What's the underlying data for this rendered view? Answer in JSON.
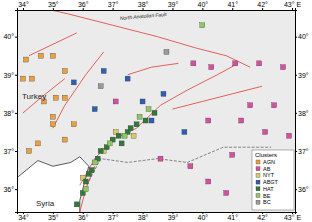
{
  "chart_data": {
    "type": "scatter",
    "legend_title": "Clusters",
    "legend": "bottom-right",
    "xlim": [
      33.8,
      43.1
    ],
    "ylim": [
      35.4,
      40.7
    ],
    "xticks": [
      {
        "value": 34,
        "label": "34°"
      },
      {
        "value": 35,
        "label": "35°"
      },
      {
        "value": 36,
        "label": "36°"
      },
      {
        "value": 37,
        "label": "37°"
      },
      {
        "value": 38,
        "label": "38°"
      },
      {
        "value": 39,
        "label": "39°"
      },
      {
        "value": 40,
        "label": "40°"
      },
      {
        "value": 41,
        "label": "41°"
      },
      {
        "value": 42,
        "label": "42°"
      },
      {
        "value": 43,
        "label": "43° E"
      }
    ],
    "yticks": [
      {
        "value": 36,
        "label": "36°"
      },
      {
        "value": 37,
        "label": "37°"
      },
      {
        "value": 38,
        "label": "38°"
      },
      {
        "value": 39,
        "label": "39°"
      },
      {
        "value": 40,
        "label": "40°"
      }
    ],
    "annotations": [
      "Turkey",
      "Syria",
      "North Anatolian Fault"
    ],
    "faults": [
      [
        [
          33.8,
          40.9
        ],
        [
          35.5,
          40.6
        ],
        [
          37.0,
          40.3
        ],
        [
          38.5,
          40.0
        ],
        [
          39.8,
          39.7
        ],
        [
          40.8,
          39.5
        ],
        [
          41.6,
          39.2
        ]
      ],
      [
        [
          35.9,
          36.1
        ],
        [
          36.4,
          36.8
        ],
        [
          37.0,
          37.3
        ],
        [
          37.8,
          37.6
        ],
        [
          38.6,
          38.2
        ],
        [
          39.5,
          38.6
        ],
        [
          40.5,
          39.0
        ],
        [
          41.2,
          39.3
        ]
      ],
      [
        [
          35.9,
          35.4
        ],
        [
          36.1,
          36.0
        ],
        [
          36.4,
          36.6
        ]
      ],
      [
        [
          34.0,
          38.0
        ],
        [
          34.6,
          38.4
        ],
        [
          35.4,
          38.9
        ]
      ],
      [
        [
          35.0,
          37.6
        ],
        [
          35.4,
          38.2
        ],
        [
          36.1,
          39.0
        ],
        [
          36.7,
          39.6
        ]
      ],
      [
        [
          37.5,
          39.0
        ],
        [
          38.3,
          39.2
        ],
        [
          39.2,
          39.3
        ]
      ],
      [
        [
          39.0,
          38.1
        ],
        [
          40.0,
          38.3
        ],
        [
          41.0,
          38.5
        ],
        [
          42.0,
          38.7
        ]
      ],
      [
        [
          34.2,
          39.5
        ],
        [
          35.0,
          39.8
        ],
        [
          35.8,
          40.1
        ]
      ]
    ],
    "coastline": [
      [
        33.8,
        36.3
      ],
      [
        34.5,
        36.75
      ],
      [
        35.0,
        36.6
      ],
      [
        35.6,
        36.7
      ],
      [
        35.9,
        36.85
      ],
      [
        36.2,
        36.6
      ],
      [
        36.0,
        36.0
      ],
      [
        35.9,
        35.7
      ],
      [
        35.9,
        35.4
      ]
    ],
    "border": [
      [
        36.0,
        35.9
      ],
      [
        36.6,
        36.8
      ],
      [
        37.5,
        36.7
      ],
      [
        38.5,
        36.8
      ],
      [
        39.5,
        36.7
      ],
      [
        40.7,
        37.1
      ],
      [
        41.5,
        37.1
      ],
      [
        42.3,
        37.1
      ]
    ],
    "series": [
      {
        "name": "AGN",
        "color": "#e8a040",
        "x": [
          34.1,
          34.0,
          34.3,
          34.6,
          35.0,
          35.4,
          35.4,
          35.1,
          34.7,
          35.0,
          34.5,
          34.2,
          35.4,
          35.7,
          35.0
        ],
        "values": [
          39.4,
          38.9,
          38.9,
          39.5,
          39.5,
          39.1,
          38.4,
          38.4,
          38.3,
          37.9,
          37.2,
          37.0,
          37.3,
          37.7,
          37.7
        ]
      },
      {
        "name": "AB",
        "color": "#d64fa0",
        "x": [
          37.1,
          39.7,
          40.3,
          41.1,
          41.9,
          42.7,
          41.6,
          42.4,
          40.2,
          41.3,
          42.1,
          42.9,
          41.0,
          38.6,
          39.6,
          40.2,
          40.8
        ],
        "values": [
          38.3,
          39.3,
          39.2,
          39.3,
          39.3,
          39.2,
          38.2,
          38.2,
          37.8,
          37.8,
          37.5,
          37.4,
          36.9,
          36.8,
          36.6,
          36.2,
          35.9
        ]
      },
      {
        "name": "NYT",
        "color": "#d8c86a",
        "x": [
          36.7,
          37.1,
          36.0,
          37.7
        ],
        "values": [
          37.0,
          37.5,
          36.3,
          37.4
        ]
      },
      {
        "name": "ABGT",
        "color": "#2f5fb0",
        "x": [
          37.5,
          36.7,
          35.7,
          38.0,
          38.7,
          39.4,
          38.3,
          36.4
        ],
        "values": [
          38.9,
          39.1,
          38.8,
          38.3,
          38.5,
          37.5,
          37.8,
          38.1
        ]
      },
      {
        "name": "HAT",
        "color": "#2f7a3a",
        "x": [
          35.8,
          36.0,
          36.1,
          36.3,
          36.5,
          36.8,
          37.0,
          37.2,
          37.5,
          37.8,
          38.1,
          38.4,
          36.6,
          37.3,
          37.6,
          36.2
        ],
        "values": [
          35.6,
          35.9,
          36.2,
          36.5,
          36.8,
          37.1,
          37.3,
          37.4,
          37.5,
          37.7,
          37.8,
          38.0,
          37.0,
          37.2,
          37.6,
          36.4
        ]
      },
      {
        "name": "BE",
        "color": "#8fc860",
        "x": [
          36.9,
          37.4,
          37.9,
          36.4,
          38.2,
          36.1,
          40.0
        ],
        "values": [
          37.2,
          37.4,
          37.9,
          36.7,
          38.1,
          36.0,
          40.3
        ]
      },
      {
        "name": "BC",
        "color": "#9a9a9a",
        "x": [
          38.8,
          36.6
        ],
        "values": [
          39.6,
          38.7
        ]
      }
    ]
  }
}
